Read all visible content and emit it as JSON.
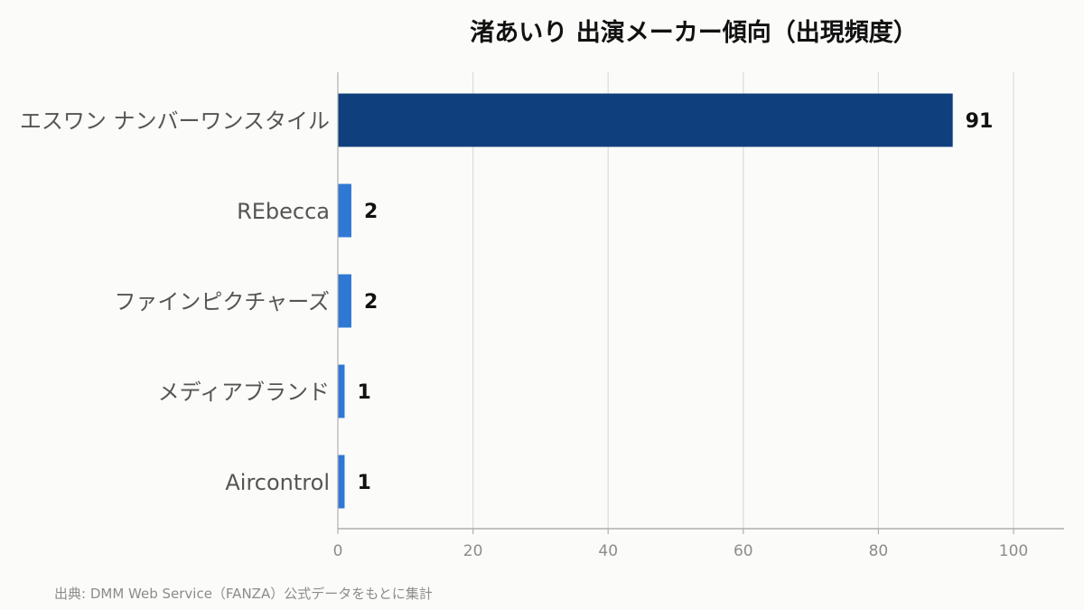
{
  "chart_data": {
    "type": "bar",
    "orientation": "horizontal",
    "title": "渚あいり 出演メーカー傾向（出現頻度）",
    "categories": [
      "エスワン ナンバーワンスタイル",
      "REbecca",
      "ファインピクチャーズ",
      "メディアブランド",
      "Aircontrol"
    ],
    "values": [
      91,
      2,
      2,
      1,
      1
    ],
    "xlabel": "",
    "ylabel": "",
    "xlim": [
      0,
      100
    ],
    "xticks": [
      0,
      20,
      40,
      60,
      80,
      100
    ],
    "grid": "vertical",
    "legend": "none",
    "data_labels": true,
    "colors": {
      "top": "#0f3f7d",
      "other": "#2f78d4",
      "grid": "#dcdcdc",
      "axis": "#b0b0b0"
    }
  },
  "source_note": "出典: DMM Web Service（FANZA）公式データをもとに集計"
}
